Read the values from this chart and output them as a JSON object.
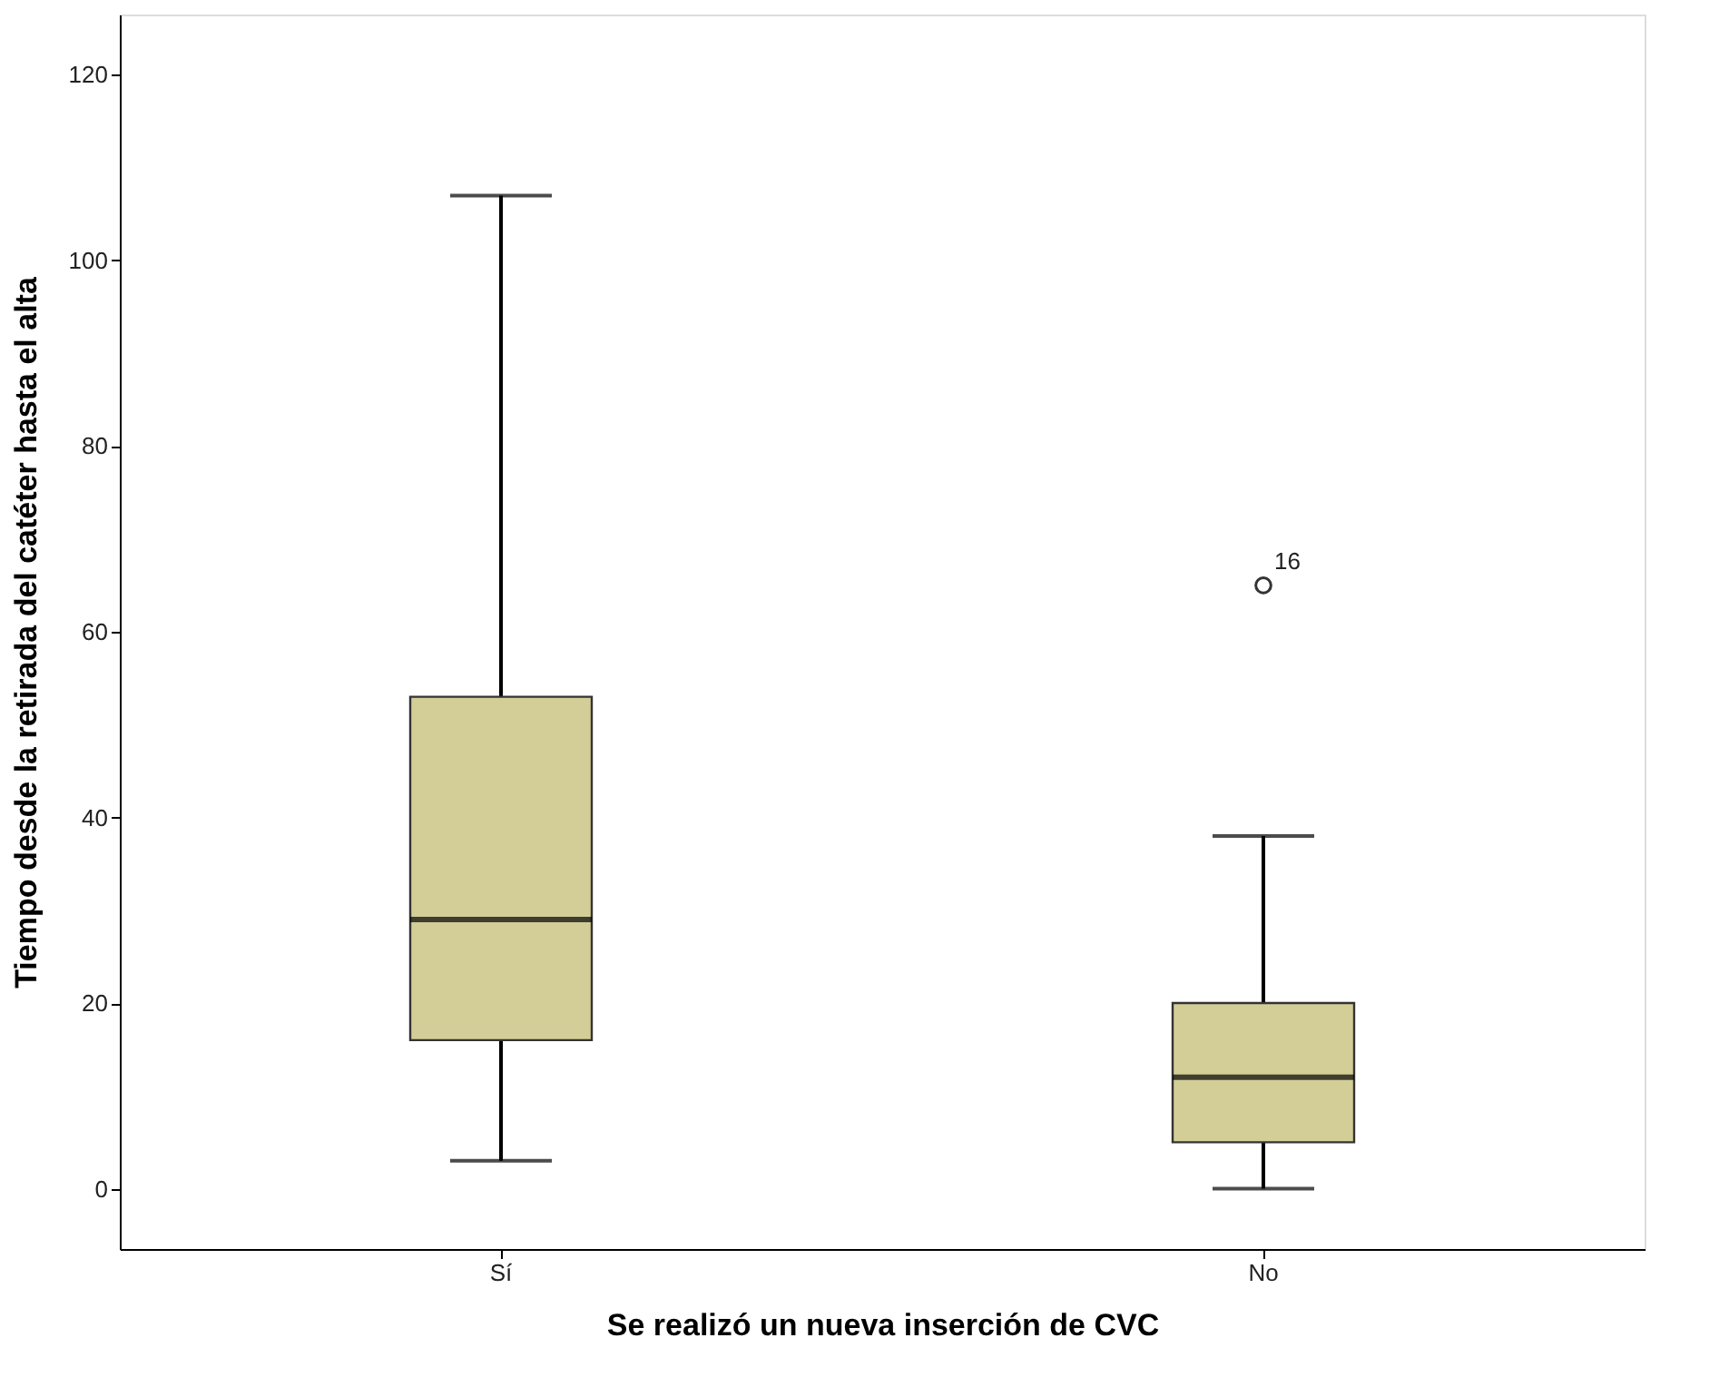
{
  "chart_data": {
    "type": "box",
    "xlabel": "Se realizó un nueva inserción de CVC",
    "ylabel": "Tiempo desde la retirada del catéter hasta el alta",
    "categories": [
      "Sí",
      "No"
    ],
    "series": [
      {
        "color": "#d3ce97",
        "boxes": [
          {
            "low": 3,
            "q1": 16,
            "median": 29,
            "q3": 53,
            "high": 107
          },
          {
            "low": 0,
            "q1": 5,
            "median": 12,
            "q3": 20,
            "high": 38,
            "outliers": [
              65
            ]
          }
        ]
      }
    ],
    "ylim": [
      -6.5,
      126.5
    ],
    "yticks": [
      0,
      20,
      40,
      60,
      80,
      100,
      120
    ],
    "grid": false,
    "annotations": [
      "16"
    ]
  }
}
